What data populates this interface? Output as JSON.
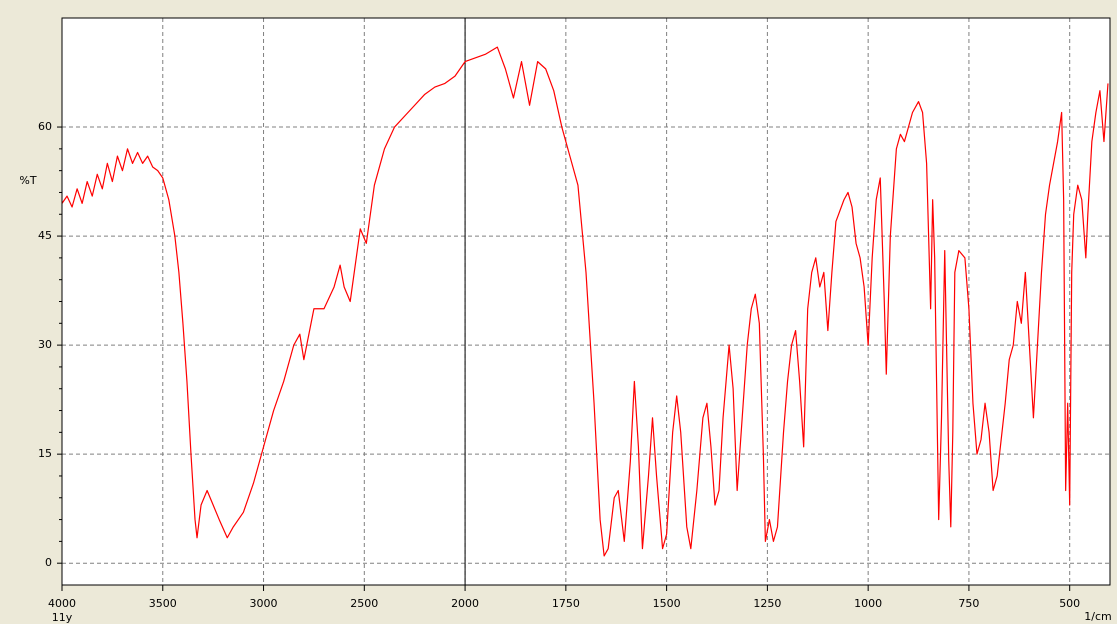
{
  "chart_data": {
    "type": "line",
    "y_label": "%T",
    "x_label": "1/cm",
    "annotation": "11y",
    "color": "#ff0000",
    "annotation_color": "#ff0000",
    "cursor_x": 2000,
    "grid": true,
    "xlim": [
      4000,
      400
    ],
    "ylim": [
      -3,
      75
    ],
    "xticks": [
      4000,
      3500,
      3000,
      2500,
      2000,
      1750,
      1500,
      1250,
      1000,
      750,
      500
    ],
    "yticks": [
      0,
      15,
      30,
      45,
      60
    ],
    "x": [
      4000,
      3975,
      3950,
      3925,
      3900,
      3875,
      3850,
      3825,
      3800,
      3775,
      3750,
      3725,
      3700,
      3675,
      3650,
      3625,
      3600,
      3575,
      3550,
      3525,
      3500,
      3470,
      3440,
      3420,
      3400,
      3380,
      3360,
      3340,
      3330,
      3310,
      3280,
      3250,
      3220,
      3180,
      3150,
      3100,
      3050,
      3000,
      2950,
      2900,
      2850,
      2820,
      2800,
      2750,
      2700,
      2650,
      2620,
      2600,
      2570,
      2520,
      2490,
      2450,
      2400,
      2350,
      2300,
      2250,
      2200,
      2150,
      2100,
      2050,
      2000,
      1950,
      1920,
      1900,
      1880,
      1860,
      1840,
      1820,
      1800,
      1780,
      1760,
      1740,
      1720,
      1700,
      1680,
      1665,
      1655,
      1645,
      1630,
      1620,
      1605,
      1590,
      1580,
      1570,
      1560,
      1545,
      1535,
      1525,
      1510,
      1500,
      1485,
      1475,
      1465,
      1450,
      1440,
      1425,
      1410,
      1400,
      1390,
      1380,
      1370,
      1360,
      1345,
      1335,
      1325,
      1310,
      1300,
      1290,
      1280,
      1270,
      1260,
      1255,
      1245,
      1235,
      1225,
      1210,
      1200,
      1190,
      1180,
      1170,
      1160,
      1150,
      1140,
      1130,
      1120,
      1110,
      1100,
      1090,
      1080,
      1060,
      1050,
      1040,
      1030,
      1020,
      1010,
      1000,
      990,
      980,
      970,
      960,
      955,
      945,
      930,
      920,
      910,
      890,
      875,
      865,
      855,
      845,
      840,
      835,
      825,
      818,
      810,
      800,
      795,
      790,
      785,
      775,
      760,
      750,
      740,
      730,
      720,
      710,
      700,
      690,
      680,
      660,
      650,
      640,
      630,
      620,
      610,
      600,
      595,
      590,
      580,
      570,
      560,
      550,
      540,
      530,
      520,
      515,
      510,
      505,
      500,
      495,
      490,
      480,
      470,
      460,
      455,
      445,
      435,
      425,
      415,
      405
    ],
    "values": [
      49.5,
      50.5,
      49,
      51.5,
      49.5,
      52.5,
      50.5,
      53.5,
      51.5,
      55,
      52.5,
      56,
      54,
      57,
      55,
      56.5,
      55,
      56,
      54.5,
      54,
      53,
      50,
      45,
      40,
      33,
      25,
      15,
      6,
      3.5,
      8,
      10,
      8,
      6,
      3.5,
      5,
      7,
      11,
      16,
      21,
      25,
      30,
      31.5,
      28,
      35,
      35,
      38,
      41,
      38,
      36,
      46,
      44,
      52,
      57,
      60,
      61.5,
      63,
      64.5,
      65.5,
      66,
      67,
      69,
      70,
      71,
      68,
      64,
      69,
      63,
      69,
      68,
      65,
      60,
      56,
      52,
      40,
      22,
      6,
      1,
      2,
      9,
      10,
      3,
      14,
      25,
      16,
      2,
      12,
      20,
      12,
      2,
      4,
      18,
      23,
      18,
      5,
      2,
      10,
      20,
      22,
      16,
      8,
      10,
      20,
      30,
      24,
      10,
      22,
      30,
      35,
      37,
      33,
      15,
      3,
      6,
      3,
      5,
      18,
      25,
      30,
      32,
      25,
      16,
      35,
      40,
      42,
      38,
      40,
      32,
      40,
      47,
      50,
      51,
      49,
      44,
      42,
      38,
      30,
      42,
      50,
      53,
      36,
      26,
      45,
      57,
      59,
      58,
      62,
      63.5,
      62,
      55,
      35,
      50,
      42,
      6,
      20,
      43,
      14,
      5,
      18,
      40,
      43,
      42,
      35,
      22,
      15,
      17,
      22,
      18,
      10,
      12,
      22,
      28,
      30,
      36,
      33,
      40,
      30,
      25,
      20,
      30,
      40,
      48,
      52,
      55,
      58,
      62,
      50,
      10,
      22,
      8,
      40,
      48,
      52,
      50,
      42,
      48,
      58,
      62,
      65,
      58,
      66
    ]
  }
}
